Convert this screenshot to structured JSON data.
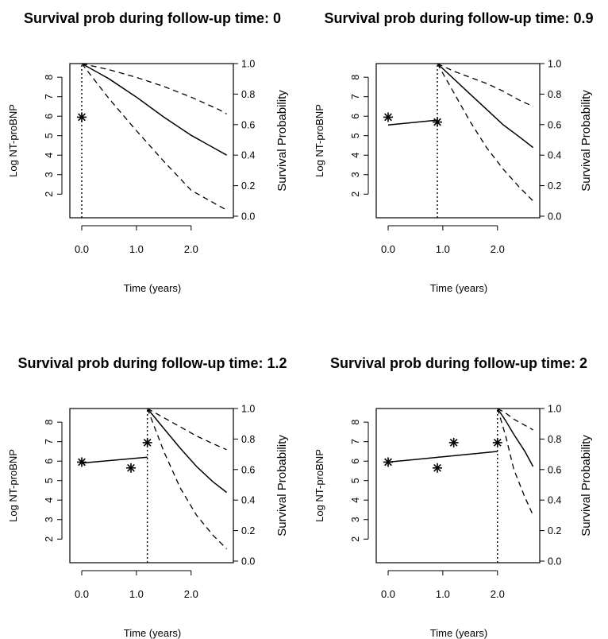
{
  "chart_data": [
    {
      "type": "line",
      "title": "Survival prob during follow-up time: 0",
      "xlabel": "Time (years)",
      "ylabel": "Log NT-proBNP",
      "ylabel_right": "Survival Probability",
      "xlim": [
        0,
        2.7
      ],
      "ylim": [
        1.4,
        8.7
      ],
      "ylim_right": [
        0,
        1
      ],
      "x_ticks": [
        "0.0",
        "1.0",
        "2.0"
      ],
      "y_ticks": [
        "2",
        "3",
        "4",
        "5",
        "6",
        "7",
        "8"
      ],
      "y_ticks_right": [
        "0.0",
        "0.2",
        "0.4",
        "0.6",
        "0.8",
        "1.0"
      ],
      "grid": false,
      "followup_time": 0,
      "observations": [
        {
          "x": 0.0,
          "y": 5.95
        }
      ],
      "fitted_trajectory": [],
      "survival": {
        "x": [
          0.0,
          0.5,
          1.0,
          1.5,
          2.0,
          2.5,
          2.65
        ],
        "estimate": [
          1.0,
          0.9,
          0.78,
          0.65,
          0.53,
          0.43,
          0.4
        ],
        "upper": [
          1.0,
          0.96,
          0.91,
          0.85,
          0.78,
          0.7,
          0.67
        ],
        "lower": [
          1.0,
          0.77,
          0.56,
          0.36,
          0.17,
          0.07,
          0.04
        ]
      }
    },
    {
      "type": "line",
      "title": "Survival prob during follow-up time: 0.9",
      "xlabel": "Time (years)",
      "ylabel": "Log NT-proBNP",
      "ylabel_right": "Survival Probability",
      "xlim": [
        0,
        2.7
      ],
      "ylim": [
        1.4,
        8.7
      ],
      "ylim_right": [
        0,
        1
      ],
      "x_ticks": [
        "0.0",
        "1.0",
        "2.0"
      ],
      "y_ticks": [
        "2",
        "3",
        "4",
        "5",
        "6",
        "7",
        "8"
      ],
      "y_ticks_right": [
        "0.0",
        "0.2",
        "0.4",
        "0.6",
        "0.8",
        "1.0"
      ],
      "grid": false,
      "followup_time": 0.9,
      "observations": [
        {
          "x": 0.0,
          "y": 5.95
        },
        {
          "x": 0.9,
          "y": 5.7
        }
      ],
      "fitted_trajectory": [
        {
          "x": 0.0,
          "y": 5.55
        },
        {
          "x": 0.9,
          "y": 5.8
        }
      ],
      "survival": {
        "x": [
          0.9,
          1.2,
          1.5,
          1.8,
          2.1,
          2.4,
          2.65
        ],
        "estimate": [
          1.0,
          0.9,
          0.8,
          0.7,
          0.6,
          0.52,
          0.45
        ],
        "upper": [
          1.0,
          0.95,
          0.91,
          0.87,
          0.82,
          0.76,
          0.72
        ],
        "lower": [
          1.0,
          0.81,
          0.62,
          0.45,
          0.31,
          0.19,
          0.1
        ]
      }
    },
    {
      "type": "line",
      "title": "Survival prob during follow-up time: 1.2",
      "xlabel": "Time (years)",
      "ylabel": "Log NT-proBNP",
      "ylabel_right": "Survival Probability",
      "xlim": [
        0,
        2.7
      ],
      "ylim": [
        1.4,
        8.7
      ],
      "ylim_right": [
        0,
        1
      ],
      "x_ticks": [
        "0.0",
        "1.0",
        "2.0"
      ],
      "y_ticks": [
        "2",
        "3",
        "4",
        "5",
        "6",
        "7",
        "8"
      ],
      "y_ticks_right": [
        "0.0",
        "0.2",
        "0.4",
        "0.6",
        "0.8",
        "1.0"
      ],
      "grid": false,
      "followup_time": 1.2,
      "observations": [
        {
          "x": 0.0,
          "y": 5.95
        },
        {
          "x": 0.9,
          "y": 5.65
        },
        {
          "x": 1.2,
          "y": 6.95
        }
      ],
      "fitted_trajectory": [
        {
          "x": 0.0,
          "y": 5.9
        },
        {
          "x": 1.2,
          "y": 6.2
        }
      ],
      "survival": {
        "x": [
          1.2,
          1.5,
          1.8,
          2.1,
          2.4,
          2.65
        ],
        "estimate": [
          1.0,
          0.87,
          0.74,
          0.62,
          0.52,
          0.45
        ],
        "upper": [
          1.0,
          0.94,
          0.88,
          0.82,
          0.77,
          0.73
        ],
        "lower": [
          1.0,
          0.72,
          0.48,
          0.3,
          0.17,
          0.08
        ]
      }
    },
    {
      "type": "line",
      "title": "Survival prob during follow-up time: 2",
      "xlabel": "Time (years)",
      "ylabel": "Log NT-proBNP",
      "ylabel_right": "Survival Probability",
      "xlim": [
        0,
        2.7
      ],
      "ylim": [
        1.4,
        8.7
      ],
      "ylim_right": [
        0,
        1
      ],
      "x_ticks": [
        "0.0",
        "1.0",
        "2.0"
      ],
      "y_ticks": [
        "2",
        "3",
        "4",
        "5",
        "6",
        "7",
        "8"
      ],
      "y_ticks_right": [
        "0.0",
        "0.2",
        "0.4",
        "0.6",
        "0.8",
        "1.0"
      ],
      "grid": false,
      "followup_time": 2,
      "observations": [
        {
          "x": 0.0,
          "y": 5.95
        },
        {
          "x": 0.9,
          "y": 5.65
        },
        {
          "x": 1.2,
          "y": 6.95
        },
        {
          "x": 2.0,
          "y": 6.95
        }
      ],
      "fitted_trajectory": [
        {
          "x": 0.0,
          "y": 5.95
        },
        {
          "x": 2.0,
          "y": 6.5
        }
      ],
      "survival": {
        "x": [
          2.0,
          2.15,
          2.3,
          2.5,
          2.65
        ],
        "estimate": [
          1.0,
          0.92,
          0.83,
          0.72,
          0.62
        ],
        "upper": [
          1.0,
          0.97,
          0.93,
          0.89,
          0.86
        ],
        "lower": [
          1.0,
          0.82,
          0.6,
          0.42,
          0.3
        ]
      }
    }
  ]
}
